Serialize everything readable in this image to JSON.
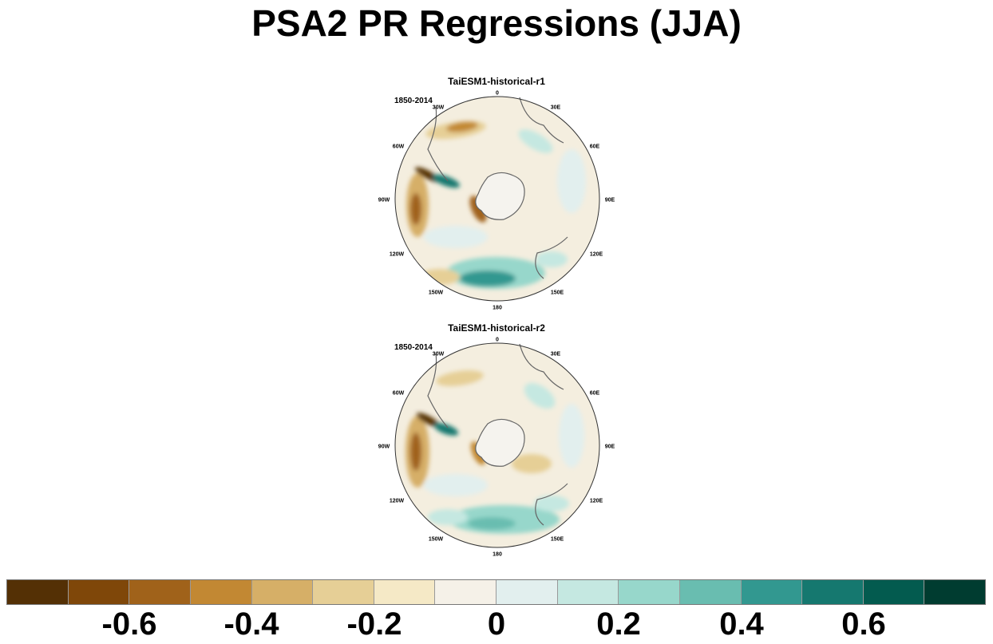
{
  "title": "PSA2 PR Regressions (JJA)",
  "panels": [
    {
      "title": "TaiESM1-historical-r1",
      "period": "1850-2014",
      "lon_labels": [
        "0",
        "30E",
        "60E",
        "90E",
        "120E",
        "150E",
        "180",
        "150W",
        "120W",
        "90W",
        "60W",
        "30W"
      ]
    },
    {
      "title": "TaiESM1-historical-r2",
      "period": "1850-2014",
      "lon_labels": [
        "0",
        "30E",
        "60E",
        "90E",
        "120E",
        "150E",
        "180",
        "150W",
        "120W",
        "90W",
        "60W",
        "30W"
      ]
    }
  ],
  "colorbar": {
    "colors": [
      "#543005",
      "#7f4709",
      "#a0621a",
      "#c28833",
      "#d6af67",
      "#e6cf96",
      "#f5e9c6",
      "#f5f1e8",
      "#e2efee",
      "#c5e8e1",
      "#97d7cb",
      "#69bdb0",
      "#329890",
      "#15786f",
      "#035b4f",
      "#003c30"
    ],
    "tick_labels": [
      "-0.6",
      "-0.4",
      "-0.2",
      "0",
      "0.2",
      "0.4",
      "0.6"
    ]
  }
}
